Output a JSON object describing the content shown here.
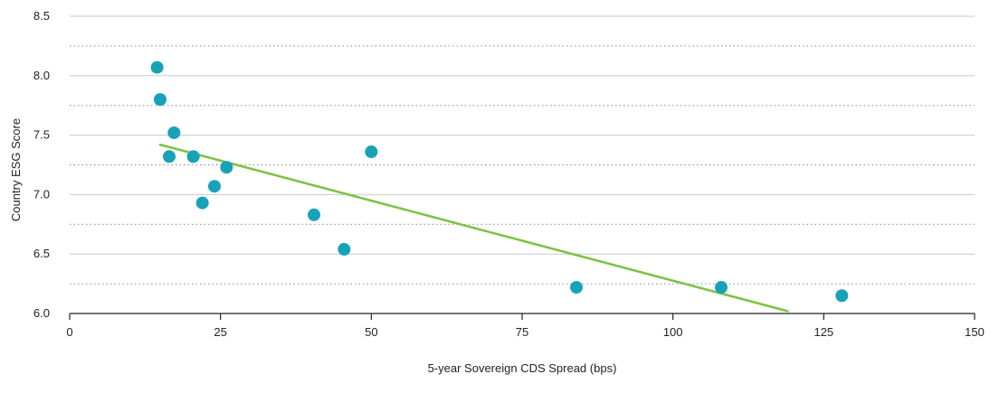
{
  "chart_data": {
    "type": "scatter",
    "xlabel": "5-year Sovereign CDS Spread (bps)",
    "ylabel": "Country ESG Score",
    "xlim": [
      0,
      150
    ],
    "ylim": [
      6.0,
      8.5
    ],
    "x_ticks": [
      "0",
      "25",
      "50",
      "75",
      "100",
      "125",
      "150"
    ],
    "y_ticks": [
      "6.0",
      "6.5",
      "7.0",
      "7.5",
      "8.0",
      "8.5"
    ],
    "grid": "horizontal",
    "colors": {
      "points": "#17a2b8",
      "trend": "#7cc242",
      "grid": "#888888",
      "axis": "#222222"
    },
    "series": [
      {
        "x": [
          14.5,
          15.0,
          17.3,
          16.5,
          20.5,
          26.0,
          24.0,
          22.0,
          50.0,
          40.5,
          45.5,
          84.0,
          108.0,
          128.0
        ],
        "y": [
          8.07,
          7.8,
          7.52,
          7.32,
          7.32,
          7.23,
          7.07,
          6.93,
          7.36,
          6.83,
          6.54,
          6.22,
          6.22,
          6.15
        ]
      }
    ],
    "trendline": {
      "x": [
        15,
        119
      ],
      "y": [
        7.42,
        6.02
      ]
    }
  }
}
